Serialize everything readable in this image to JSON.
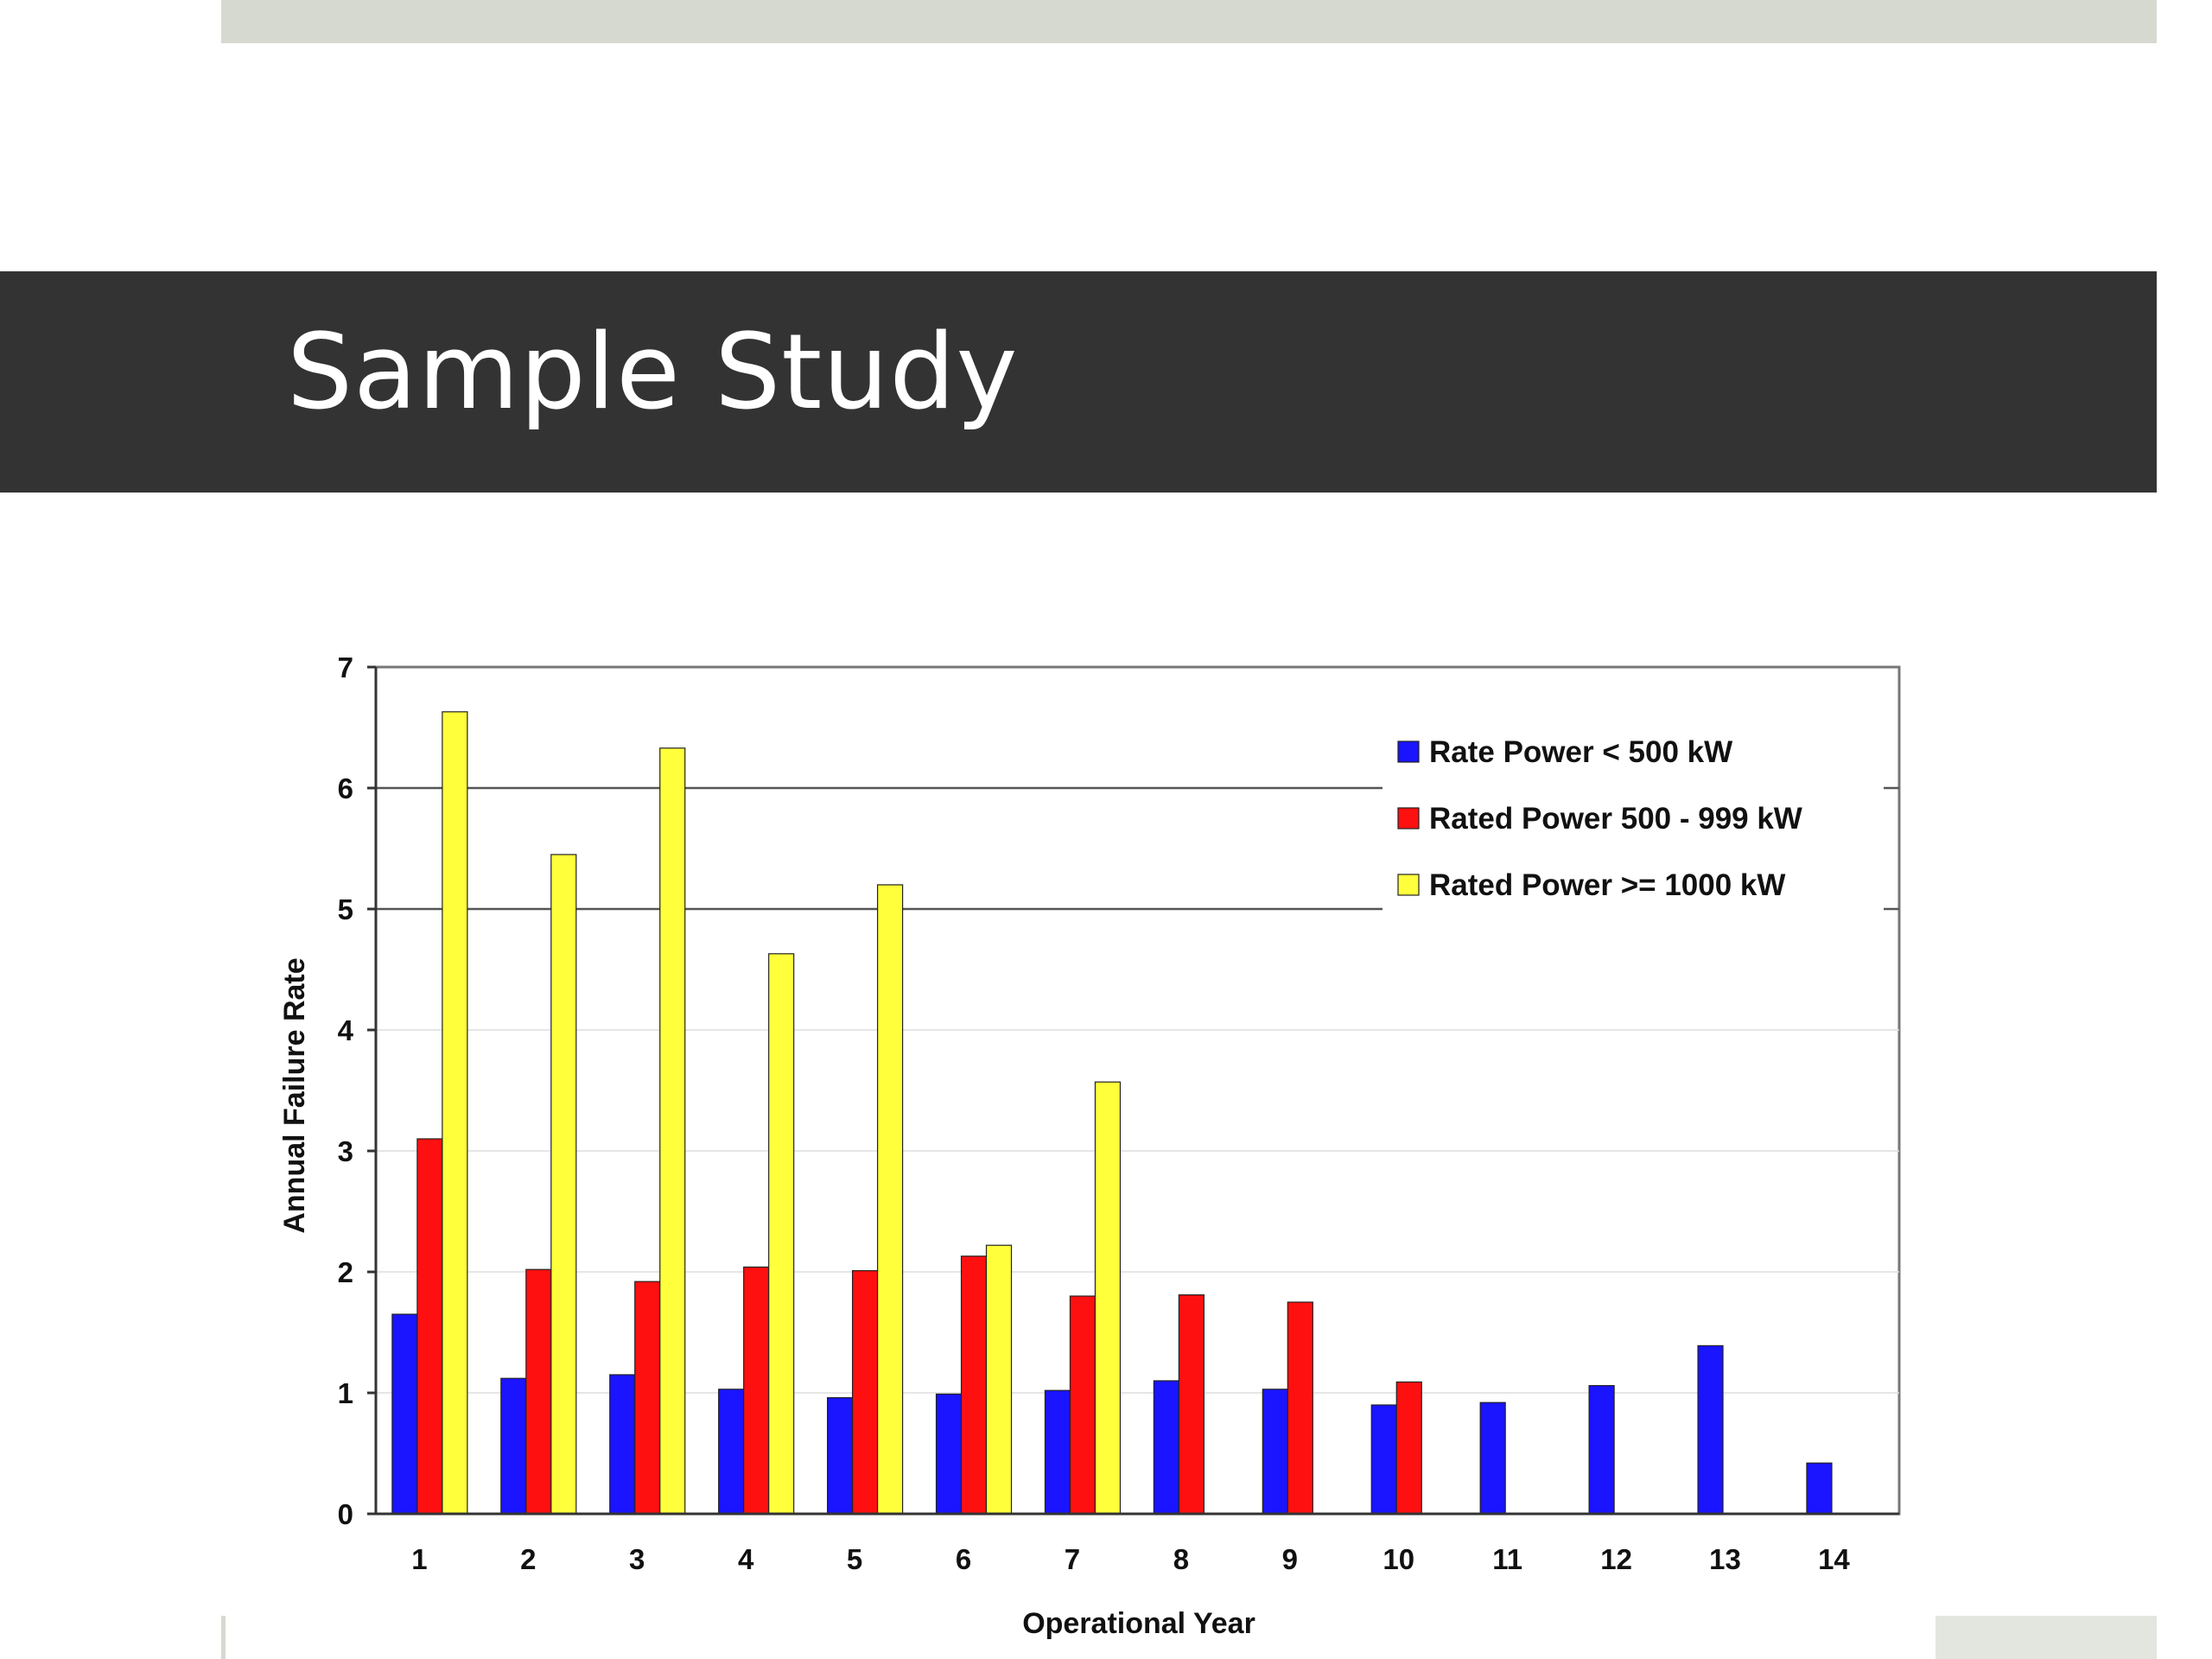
{
  "slide": {
    "title": "Sample Study"
  },
  "colors": {
    "series": [
      "#1a14ff",
      "#ff1010",
      "#ffff3c"
    ],
    "title_band": "#333333",
    "accent_strip": "#d6d9d0"
  },
  "chart_data": {
    "type": "bar",
    "xlabel": "Operational Year",
    "ylabel": "Annual Failure Rate",
    "ylim": [
      0,
      7
    ],
    "yticks": [
      0,
      1,
      2,
      3,
      4,
      5,
      6,
      7
    ],
    "grid": true,
    "legend_position": "top-right",
    "categories": [
      "1",
      "2",
      "3",
      "4",
      "5",
      "6",
      "7",
      "8",
      "9",
      "10",
      "11",
      "12",
      "13",
      "14"
    ],
    "series": [
      {
        "name": "Rate Power < 500 kW",
        "values": [
          1.65,
          1.12,
          1.15,
          1.03,
          0.96,
          0.99,
          1.02,
          1.1,
          1.03,
          0.9,
          0.92,
          1.06,
          1.39,
          0.42
        ]
      },
      {
        "name": "Rated Power 500 - 999 kW",
        "values": [
          3.1,
          2.02,
          1.92,
          2.04,
          2.01,
          2.13,
          1.8,
          1.81,
          1.75,
          1.09,
          null,
          null,
          null,
          null
        ]
      },
      {
        "name": "Rated Power >= 1000 kW",
        "values": [
          6.63,
          5.45,
          6.33,
          4.63,
          5.2,
          2.22,
          3.57,
          null,
          null,
          null,
          null,
          null,
          null,
          null
        ]
      }
    ]
  }
}
